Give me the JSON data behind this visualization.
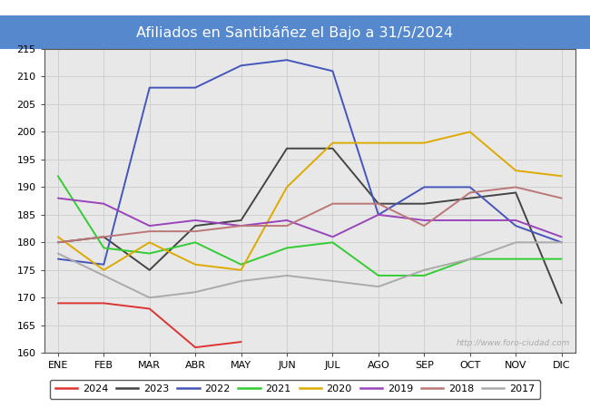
{
  "title": "Afiliados en Santibáñez el Bajo a 31/5/2024",
  "title_bg_color": "#5588cc",
  "title_text_color": "white",
  "ylim": [
    160,
    215
  ],
  "yticks": [
    160,
    165,
    170,
    175,
    180,
    185,
    190,
    195,
    200,
    205,
    210,
    215
  ],
  "months": [
    "ENE",
    "FEB",
    "MAR",
    "ABR",
    "MAY",
    "JUN",
    "JUL",
    "AGO",
    "SEP",
    "OCT",
    "NOV",
    "DIC"
  ],
  "watermark": "http://www.foro-ciudad.com",
  "series": {
    "2024": {
      "color": "#dd3333",
      "data": [
        169,
        169,
        168,
        161,
        162,
        null,
        null,
        null,
        null,
        null,
        null,
        null
      ]
    },
    "2023": {
      "color": "#444444",
      "data": [
        180,
        181,
        175,
        183,
        184,
        197,
        197,
        187,
        187,
        188,
        189,
        169
      ]
    },
    "2022": {
      "color": "#4455bb",
      "data": [
        177,
        176,
        208,
        208,
        212,
        213,
        211,
        185,
        190,
        190,
        183,
        180
      ]
    },
    "2021": {
      "color": "#33cc33",
      "data": [
        192,
        179,
        178,
        180,
        176,
        179,
        180,
        174,
        174,
        177,
        177,
        177
      ]
    },
    "2020": {
      "color": "#ddaa00",
      "data": [
        181,
        175,
        180,
        176,
        175,
        190,
        198,
        198,
        198,
        200,
        193,
        192
      ]
    },
    "2019": {
      "color": "#9944bb",
      "data": [
        188,
        187,
        183,
        184,
        183,
        184,
        181,
        185,
        184,
        184,
        184,
        181
      ]
    },
    "2018": {
      "color": "#bb7777",
      "data": [
        180,
        181,
        182,
        182,
        183,
        183,
        187,
        187,
        183,
        189,
        190,
        188
      ]
    },
    "2017": {
      "color": "#aaaaaa",
      "data": [
        178,
        174,
        170,
        171,
        173,
        174,
        173,
        172,
        175,
        177,
        180,
        180
      ]
    }
  },
  "legend_order": [
    "2024",
    "2023",
    "2022",
    "2021",
    "2020",
    "2019",
    "2018",
    "2017"
  ],
  "background_color": "#ffffff",
  "plot_bg_color": "#e8e8e8",
  "grid_color": "#cccccc"
}
